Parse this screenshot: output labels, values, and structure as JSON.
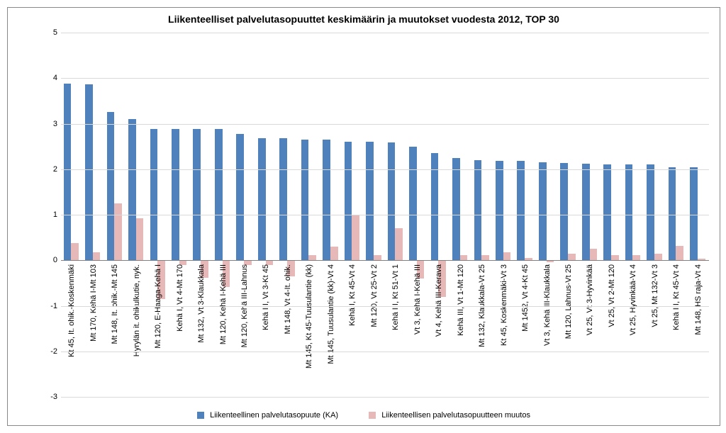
{
  "chart": {
    "type": "bar",
    "title": "Liikenteelliset palvelutasopuuttet keskimäärin ja muutokset vuodesta 2012, TOP 30",
    "title_fontsize": 14,
    "title_fontweight": "bold",
    "background_color": "#ffffff",
    "grid_color": "#d9d9d9",
    "axis_color": "#808080",
    "label_fontsize": 11,
    "ylim": [
      -3,
      5
    ],
    "ytick_step": 1,
    "yticks": [
      -3,
      -2,
      -1,
      0,
      1,
      2,
      3,
      4,
      5
    ],
    "series": [
      {
        "name": "Liikenteellinen palvelutasopuute (KA)",
        "color": "#4f81bd"
      },
      {
        "name": "Liikenteellisen palvelutasopuutteen muutos",
        "color": "#e6b8b7"
      }
    ],
    "categories": [
      "Kt 45, It. ohik.-Koskenmäki",
      "Mt 170, Kehä I-Mt 103",
      "Mt 148, It. ohik.-Mt 145",
      "Hyrylän it. ohikulkutie, nyk.",
      "Mt 120, E-Haaga-Kehä I",
      "Kehä I, Vt 4-Mt 170",
      "Mt 132, Vt 3-Klaukkala",
      "Mt 120, Kehä I-Kehä III",
      "Mt 120, Kehä III-Lahnus",
      "Kehä III, Vt 3-Kt 45",
      "Mt 148, Vt 4-It. ohik.",
      "Mt 145, Kt 45-Tuusulantie (kk)",
      "Mt 145, Tuusulantie (kk)-Vt 4",
      "Kehä I, Kt 45-Vt 4",
      "Mt 120, Vt 25-Vt 2",
      "Kehä III, Kt 51-Vt 1",
      "Vt 3, Kehä I-Kehä III",
      "Vt 4, Kehä III-Kerava",
      "Kehä III, Vt 1-Mt 120",
      "Mt 132, Klaukkala-Vt 25",
      "Kt 45, Koskenmäki-Vt 3",
      "Mt 1452, Vt 4-Kt 45",
      "Vt 3, Kehä III-Klaukkala",
      "Mt 120, Lahnus-Vt 25",
      "Vt 25, Vt 3-Hyvinkää",
      "Vt 25, Vt 2-Mt 120",
      "Vt 25, Hyvinkää-Vt 4",
      "Vt 25, Mt 132-Vt 3",
      "Kehä III, Kt 45-Vt 4",
      "Mt 148, HS raja-Vt 4"
    ],
    "values_ka": [
      3.88,
      3.86,
      3.25,
      3.1,
      2.88,
      2.88,
      2.88,
      2.88,
      2.78,
      2.68,
      2.68,
      2.65,
      2.65,
      2.6,
      2.6,
      2.58,
      2.5,
      2.35,
      2.25,
      2.2,
      2.18,
      2.18,
      2.15,
      2.14,
      2.12,
      2.1,
      2.1,
      2.1,
      2.05,
      2.05
    ],
    "values_muutos": [
      0.38,
      0.18,
      1.25,
      0.92,
      -0.85,
      -0.1,
      -0.38,
      -0.58,
      -0.1,
      -0.1,
      -0.35,
      0.12,
      0.3,
      1.0,
      0.12,
      0.7,
      -0.4,
      -0.8,
      0.12,
      0.12,
      0.18,
      0.05,
      -0.05,
      0.15,
      0.25,
      0.12,
      0.12,
      0.15,
      0.32,
      0.03
    ],
    "bar_width_ratio": 0.35
  }
}
